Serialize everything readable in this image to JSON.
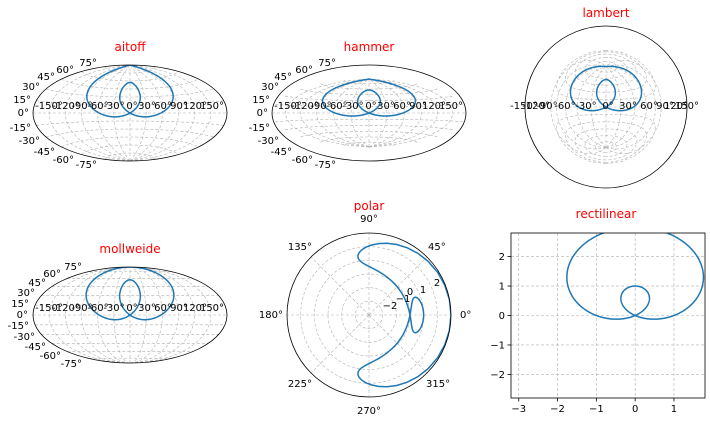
{
  "chart_data": [
    {
      "type": "line",
      "projection": "aitoff",
      "title": "aitoff",
      "title_color": "#ff0000",
      "grid": true,
      "lat_ticks": [
        "75°",
        "60°",
        "45°",
        "30°",
        "15°",
        "0°",
        "-15°",
        "-30°",
        "-45°",
        "-60°",
        "-75°"
      ],
      "lon_ticks": [
        "-150°",
        "-120°",
        "-90°",
        "-60°",
        "-30°",
        "0°",
        "30°",
        "60°",
        "90°",
        "120°",
        "150°"
      ],
      "series": [
        {
          "curve": "theta = t, r = 2*sin(t) + 1, drawn as (x = r*cos t, y = r*sin t)",
          "t_range": [
            0,
            6.2832
          ],
          "color": "#1f77b4"
        }
      ]
    },
    {
      "type": "line",
      "projection": "hammer",
      "title": "hammer",
      "title_color": "#ff0000",
      "grid": true,
      "lat_ticks": [
        "75°",
        "60°",
        "45°",
        "30°",
        "15°",
        "0°",
        "-15°",
        "-30°",
        "-45°",
        "-60°",
        "-75°"
      ],
      "lon_ticks": [
        "-150°",
        "-120°",
        "-90°",
        "-60°",
        "-30°",
        "0°",
        "30°",
        "60°",
        "90°",
        "120°",
        "150°"
      ],
      "series": [
        {
          "curve": "theta = t, r = 2*sin(t) + 1",
          "t_range": [
            0,
            6.2832
          ],
          "color": "#1f77b4"
        }
      ]
    },
    {
      "type": "line",
      "projection": "lambert",
      "title": "lambert",
      "title_color": "#ff0000",
      "grid": true,
      "lon_ticks": [
        "-150°",
        "-120°",
        "-90°",
        "-60°",
        "-30°",
        "0°",
        "30°",
        "60°",
        "90°",
        "120°",
        "150°"
      ],
      "series": [
        {
          "curve": "theta = t, r = 2*sin(t) + 1",
          "t_range": [
            0,
            6.2832
          ],
          "color": "#1f77b4"
        }
      ]
    },
    {
      "type": "line",
      "projection": "mollweide",
      "title": "mollweide",
      "title_color": "#ff0000",
      "grid": true,
      "lat_ticks": [
        "75°",
        "60°",
        "45°",
        "30°",
        "15°",
        "0°",
        "-15°",
        "-30°",
        "-45°",
        "-60°",
        "-75°"
      ],
      "lon_ticks": [
        "-150°",
        "-120°",
        "-90°",
        "-60°",
        "-30°",
        "0°",
        "30°",
        "60°",
        "90°",
        "120°",
        "150°"
      ],
      "series": [
        {
          "curve": "theta = t, r = 2*sin(t) + 1",
          "t_range": [
            0,
            6.2832
          ],
          "color": "#1f77b4"
        }
      ]
    },
    {
      "type": "line",
      "projection": "polar",
      "title": "polar",
      "title_color": "#ff0000",
      "grid": true,
      "theta_ticks": [
        "0°",
        "45°",
        "90°",
        "135°",
        "180°",
        "225°",
        "270°",
        "315°"
      ],
      "r_ticks": [
        "−2",
        "−1",
        "0",
        "1",
        "2"
      ],
      "rlim": [
        -3,
        3
      ],
      "series": [
        {
          "curve": "theta = t, r = 2*sin(t) + 1",
          "t_range": [
            0,
            6.2832
          ],
          "color": "#1f77b4"
        }
      ]
    },
    {
      "type": "line",
      "projection": "rectilinear",
      "title": "rectilinear",
      "title_color": "#ff0000",
      "grid": true,
      "xlim": [
        -3.2,
        1.8
      ],
      "ylim": [
        -2.8,
        2.8
      ],
      "x_ticks": [
        -3,
        -2,
        -1,
        0,
        1
      ],
      "y_ticks": [
        -2,
        -1,
        0,
        1,
        2
      ],
      "x_tick_labels": [
        "−3",
        "−2",
        "−1",
        "0",
        "1"
      ],
      "y_tick_labels": [
        "−2",
        "−1",
        "0",
        "1",
        "2"
      ],
      "series": [
        {
          "curve": "x = r*cos t, y = r*sin t with r = 2*sin(t) + 1",
          "t_range": [
            0,
            6.2832
          ],
          "color": "#1f77b4"
        }
      ]
    }
  ]
}
